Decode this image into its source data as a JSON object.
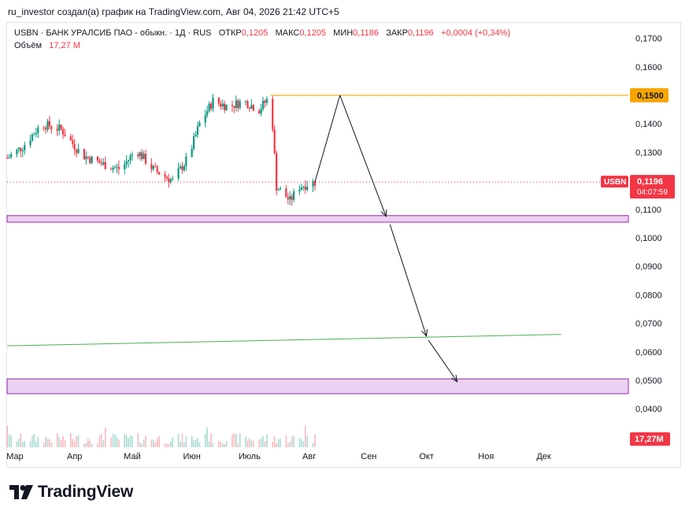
{
  "header": {
    "caption": "ru_investor создал(а) график на TradingView.com, Авг 04, 2026 21:42 UTC+5"
  },
  "legend": {
    "symbol_line": "USBN · БАНК УРАЛСИБ ПАО - обыкн. · 1Д · RUS",
    "open_label": "ОТКР",
    "open_value": "0,1205",
    "high_label": "МАКС",
    "high_value": "0,1205",
    "low_label": "МИН",
    "low_value": "0,1186",
    "close_label": "ЗАКР",
    "close_value": "0,1196",
    "change": "+0,0004 (+0,34%)",
    "volume_label": "Объём",
    "volume_value": "17,27 M"
  },
  "price_axis": {
    "ticks": [
      "0,1700",
      "0,1600",
      "0,1400",
      "0,1300",
      "0,1100",
      "0,1000",
      "0,0900",
      "0,0800",
      "0,0700",
      "0,0600",
      "0,0500",
      "0,0400"
    ],
    "tick_values": [
      0.17,
      0.16,
      0.14,
      0.13,
      0.11,
      0.1,
      0.09,
      0.08,
      0.07,
      0.06,
      0.05,
      0.04
    ],
    "marker_level": "0,1500",
    "marker_level_value": 0.15,
    "last_symbol": "USBN",
    "last_price": "0,1196",
    "last_price_value": 0.1196,
    "countdown": "04:07:59",
    "volume_badge": "17,27M"
  },
  "time_axis": {
    "labels": [
      "Мар",
      "Апр",
      "Май",
      "Июн",
      "Июль",
      "Авг",
      "Сен",
      "Окт",
      "Ноя",
      "Дек"
    ]
  },
  "colors": {
    "up": "#089981",
    "down": "#f23645",
    "resistance": "#f7a600",
    "zone_fill": "#ead2f0",
    "zone_border": "#9c27b0",
    "trendline": "#4caf50",
    "arrow": "#131722"
  },
  "logo": {
    "text": "TradingView"
  },
  "chart_data": {
    "type": "candlestick",
    "symbol": "USBN",
    "interval": "1Д",
    "ylim": [
      0.037,
      0.1735
    ],
    "price_path": [
      {
        "date": "2026-02-25",
        "price": 0.128
      },
      {
        "date": "2026-03-05",
        "price": 0.132
      },
      {
        "date": "2026-03-15",
        "price": 0.14
      },
      {
        "date": "2026-03-25",
        "price": 0.138
      },
      {
        "date": "2026-04-05",
        "price": 0.129
      },
      {
        "date": "2026-04-15",
        "price": 0.126
      },
      {
        "date": "2026-04-25",
        "price": 0.124
      },
      {
        "date": "2026-05-03",
        "price": 0.131
      },
      {
        "date": "2026-05-12",
        "price": 0.124
      },
      {
        "date": "2026-05-22",
        "price": 0.12
      },
      {
        "date": "2026-05-30",
        "price": 0.128
      },
      {
        "date": "2026-06-05",
        "price": 0.14
      },
      {
        "date": "2026-06-12",
        "price": 0.148
      },
      {
        "date": "2026-06-20",
        "price": 0.146
      },
      {
        "date": "2026-06-28",
        "price": 0.148
      },
      {
        "date": "2026-07-06",
        "price": 0.145
      },
      {
        "date": "2026-07-12",
        "price": 0.15
      },
      {
        "date": "2026-07-15",
        "price": 0.118
      },
      {
        "date": "2026-07-22",
        "price": 0.113
      },
      {
        "date": "2026-07-27",
        "price": 0.118
      },
      {
        "date": "2026-08-04",
        "price": 0.1196
      }
    ],
    "levels": [
      {
        "name": "resistance",
        "price": 0.15
      }
    ],
    "zones": [
      {
        "from": 0.1055,
        "to": 0.1078
      },
      {
        "from": 0.0453,
        "to": 0.0505
      }
    ],
    "trendline": [
      {
        "date": "2026-02-25",
        "price": 0.0621
      },
      {
        "date": "2026-12-10",
        "price": 0.0661
      }
    ],
    "projection": [
      {
        "date": "2026-08-04",
        "price": 0.1196
      },
      {
        "date": "2026-08-17",
        "price": 0.15
      },
      {
        "date": "2026-09-10",
        "price": 0.1075
      },
      {
        "date": "2026-09-12",
        "price": 0.1047
      },
      {
        "date": "2026-10-01",
        "price": 0.0655
      },
      {
        "date": "2026-10-02",
        "price": 0.0641
      },
      {
        "date": "2026-10-17",
        "price": 0.0495
      }
    ],
    "volume_last": "17,27M"
  }
}
